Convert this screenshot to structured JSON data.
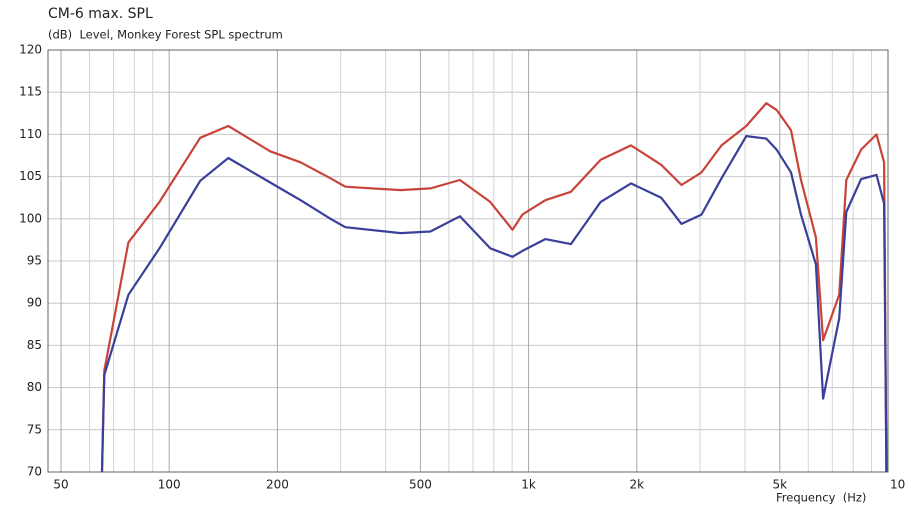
{
  "chart_data": {
    "type": "line",
    "title": "CM-6 max. SPL",
    "subtitle": "(dB)  Level, Monkey Forest SPL spectrum",
    "x_label": "Frequency  (Hz)",
    "x_scale": "log",
    "xlim": [
      46,
      10000
    ],
    "ylim": [
      70,
      120
    ],
    "yticks": [
      70,
      75,
      80,
      85,
      90,
      95,
      100,
      105,
      110,
      115,
      120
    ],
    "xticks": [
      50,
      100,
      200,
      500,
      {
        "value": 1000,
        "label": "1k"
      },
      {
        "value": 2000,
        "label": "2k"
      },
      {
        "value": 5000,
        "label": "5k"
      },
      {
        "value": 10000,
        "label": "10"
      }
    ],
    "xminor": [
      60,
      70,
      80,
      90,
      300,
      400,
      600,
      700,
      800,
      900,
      3000,
      4000,
      6000,
      7000,
      8000,
      9000
    ],
    "grid": true,
    "x": [
      65,
      66,
      77,
      94,
      122,
      146,
      191,
      232,
      281,
      309,
      440,
      533,
      644,
      782,
      902,
      961,
      1113,
      1311,
      1587,
      1927,
      2338,
      2663,
      3027,
      3441,
      4034,
      4586,
      4899,
      5373,
      5727,
      6302,
      6597,
      7314,
      7656,
      8418,
      9292,
      9752,
      9900
    ],
    "series": [
      {
        "color": "#c8443a",
        "values": [
          70,
          82,
          97.2,
          102,
          109.6,
          111,
          108,
          106.7,
          104.8,
          103.8,
          103.4,
          103.6,
          104.6,
          102,
          98.7,
          100.5,
          102.2,
          103.2,
          107,
          108.7,
          106.4,
          104,
          105.5,
          108.7,
          111,
          113.7,
          112.9,
          110.5,
          104.6,
          97.8,
          85.6,
          91,
          104.6,
          108.2,
          110,
          106.7,
          70
        ]
      },
      {
        "color": "#3a3f9a",
        "values": [
          70,
          81.5,
          91,
          96.5,
          104.5,
          107.2,
          104.3,
          102.2,
          100,
          99,
          98.3,
          98.5,
          100.3,
          96.5,
          95.5,
          96.2,
          97.6,
          97,
          102,
          104.2,
          102.5,
          99.4,
          100.5,
          104.8,
          109.8,
          109.5,
          108.2,
          105.5,
          100.5,
          94.6,
          78.7,
          88.2,
          100.8,
          104.7,
          105.2,
          101.8,
          70
        ]
      }
    ]
  }
}
